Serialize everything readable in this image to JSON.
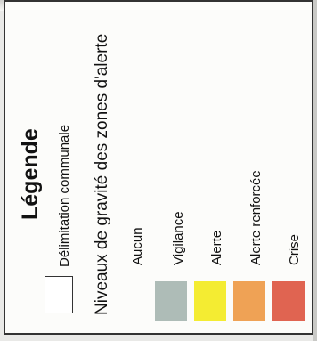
{
  "legend": {
    "title": "Légende",
    "boundary_label": "Délimitation communale",
    "severity_heading": "Niveaux de gravité des zones d'alerte",
    "levels": [
      {
        "label": "Aucun",
        "color": "#ffffff"
      },
      {
        "label": "Vigilance",
        "color": "#aebcb7"
      },
      {
        "label": "Alerte",
        "color": "#f4ec32"
      },
      {
        "label": "Alerte renforcée",
        "color": "#efa255"
      },
      {
        "label": "Crise",
        "color": "#e06451"
      }
    ]
  }
}
